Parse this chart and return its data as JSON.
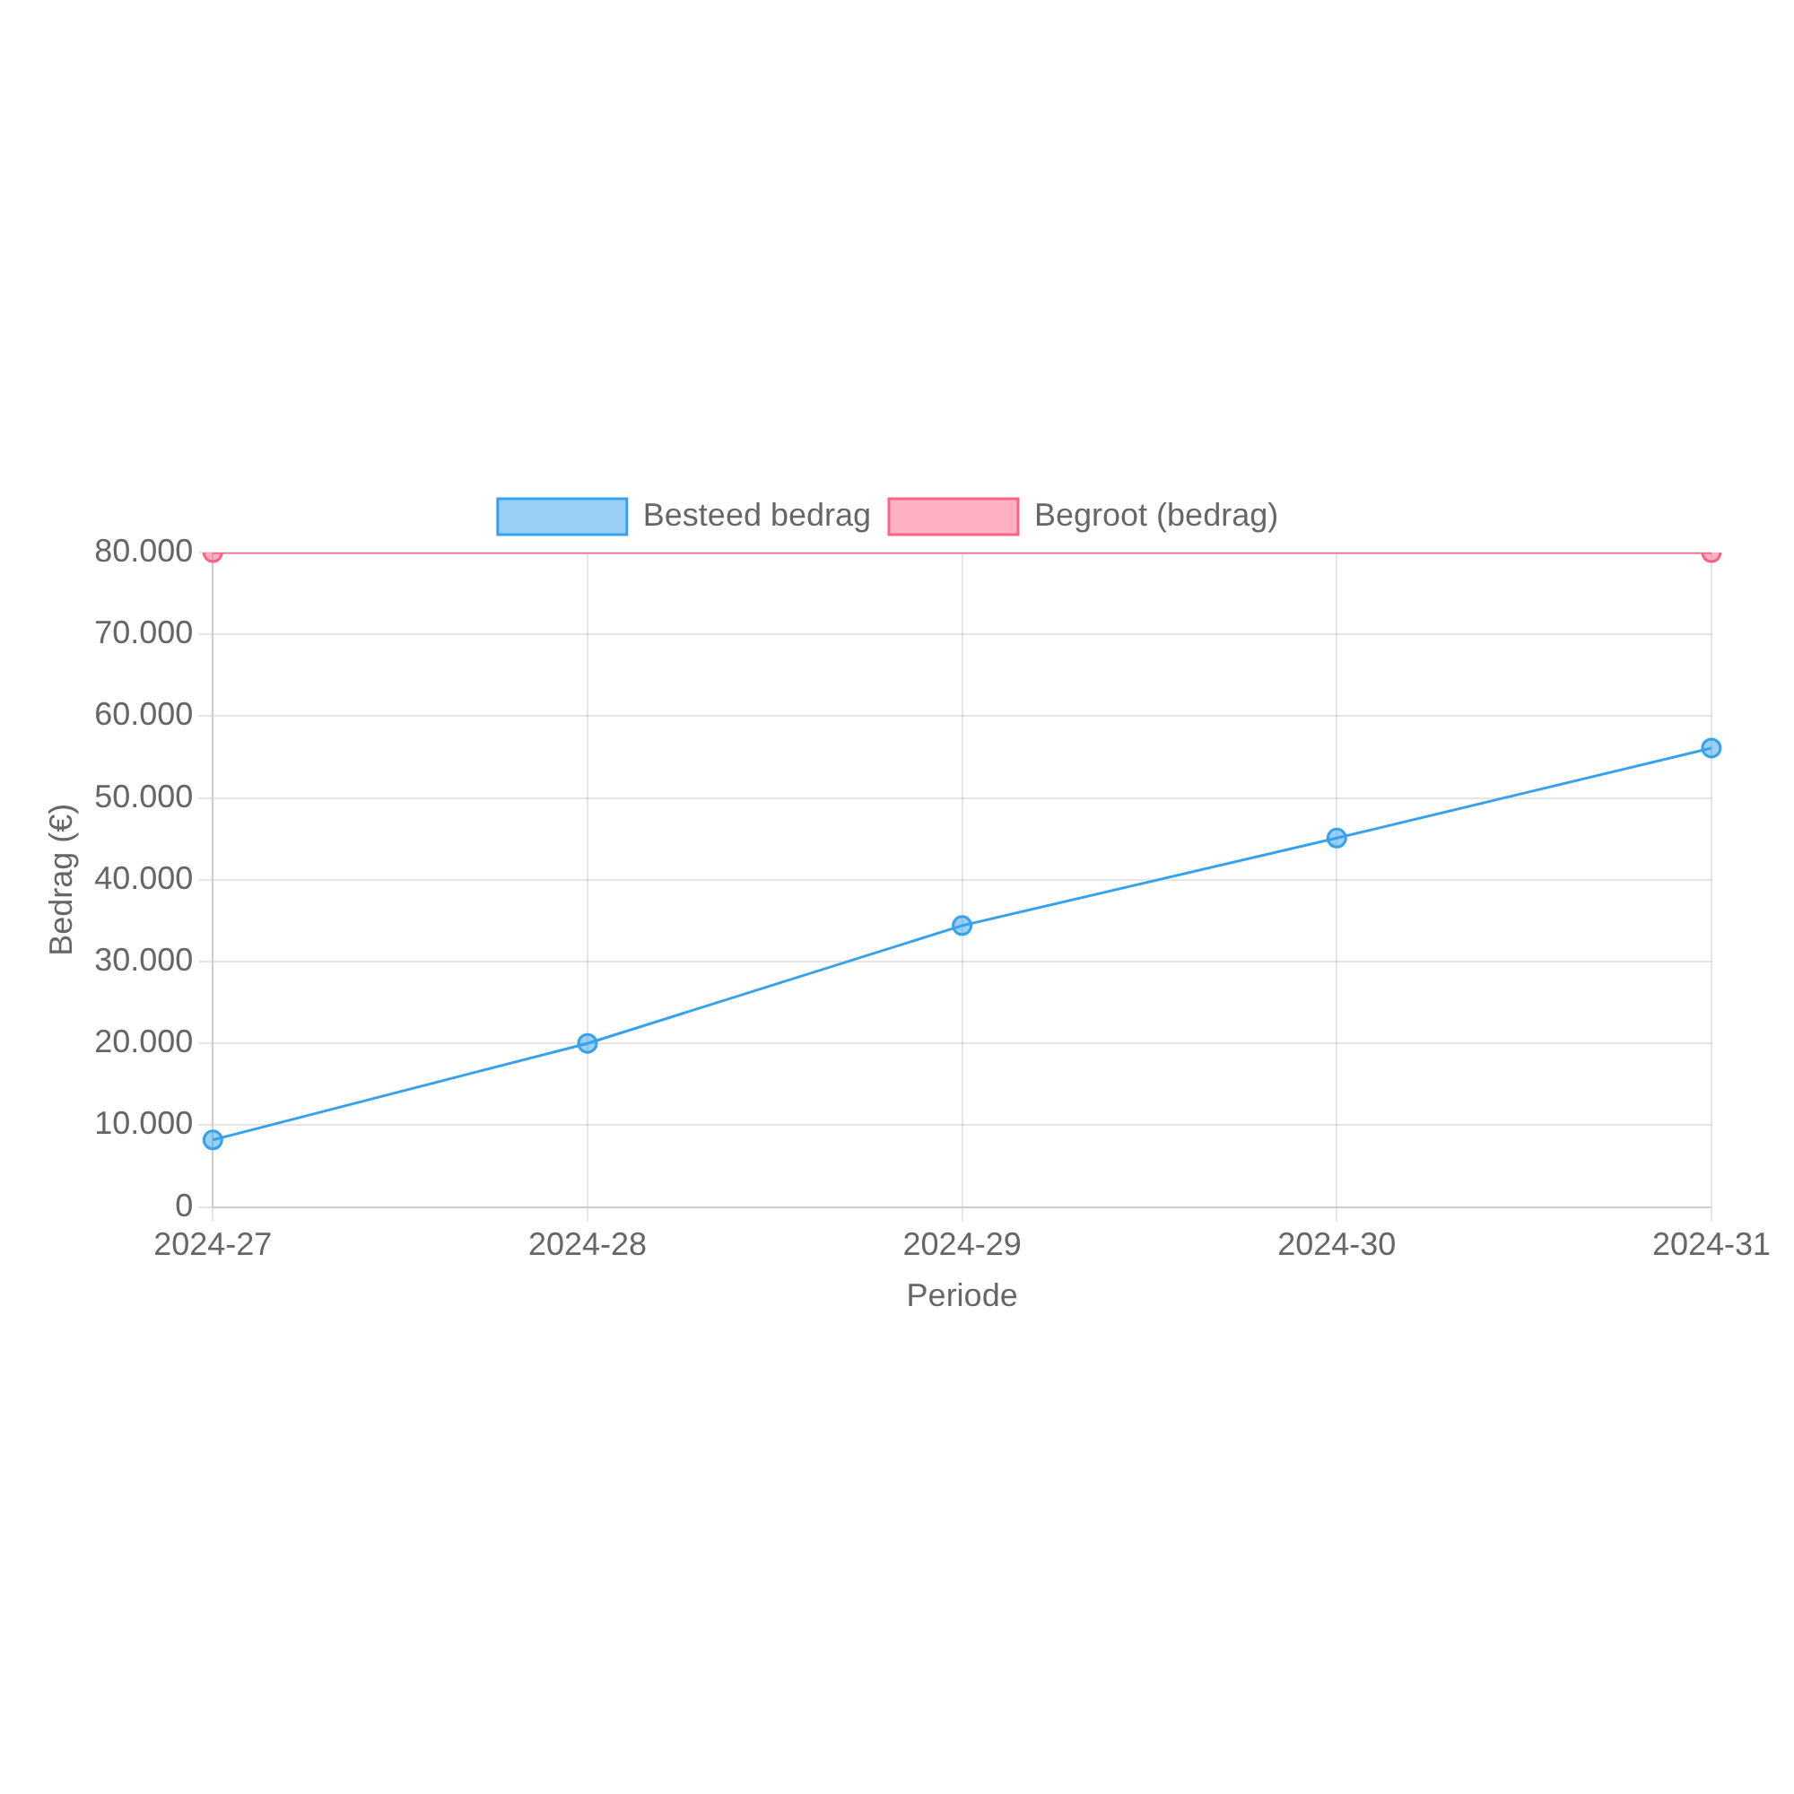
{
  "chart_data": {
    "type": "line",
    "xlabel": "Periode",
    "ylabel": "Bedrag (€)",
    "categories": [
      "2024-27",
      "2024-28",
      "2024-29",
      "2024-30",
      "2024-31"
    ],
    "series": [
      {
        "name": "Besteed bedrag",
        "color": "#36a2eb",
        "values": [
          8200,
          20000,
          34400,
          45100,
          56100
        ]
      },
      {
        "name": "Begroot (bedrag)",
        "color": "#ff6384",
        "x": [
          "2024-27",
          "2024-31"
        ],
        "values": [
          80000,
          80000
        ]
      }
    ],
    "ylim": [
      0,
      80000
    ],
    "yticks": [
      0,
      {
        "value": 10000,
        "label": "10.000"
      },
      {
        "value": 20000,
        "label": "20.000"
      },
      {
        "value": 30000,
        "label": "30.000"
      },
      {
        "value": 40000,
        "label": "40.000"
      },
      {
        "value": 50000,
        "label": "50.000"
      },
      {
        "value": 60000,
        "label": "60.000"
      },
      {
        "value": 70000,
        "label": "70.000"
      },
      {
        "value": 80000,
        "label": "80.000"
      }
    ],
    "grid": true,
    "legend": "top",
    "marker": "circle",
    "line_style": "solid"
  }
}
